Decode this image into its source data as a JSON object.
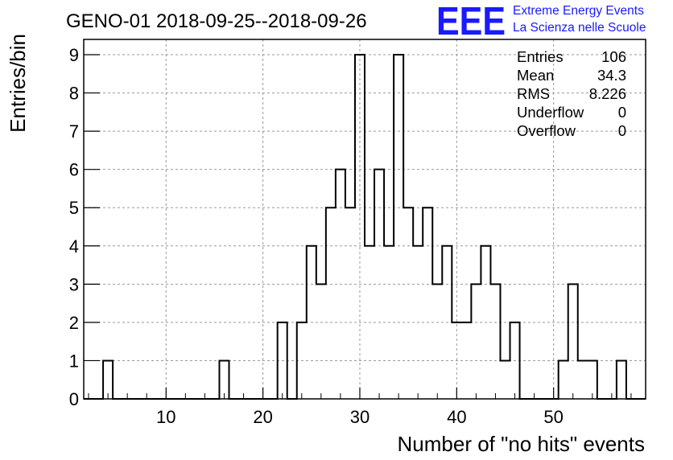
{
  "title": "GENO-01 2018-09-25--2018-09-26",
  "logo": {
    "text": "EEE",
    "line1": "Extreme Energy Events",
    "line2": "La Scienza nelle Scuole",
    "color": "#1a1aff"
  },
  "stats": [
    {
      "label": "Entries",
      "value": "106"
    },
    {
      "label": "Mean",
      "value": "34.3"
    },
    {
      "label": "RMS",
      "value": "8.226"
    },
    {
      "label": "Underflow",
      "value": "0"
    },
    {
      "label": "Overflow",
      "value": "0"
    }
  ],
  "chart_data": {
    "type": "bar",
    "histogram": true,
    "title": "GENO-01 2018-09-25--2018-09-26",
    "xlabel": "Number of \"no hits\" events",
    "ylabel": "Entries/bin",
    "xlim": [
      1.5,
      59.5
    ],
    "ylim": [
      0,
      9.4
    ],
    "bin_width": 1,
    "xticks": [
      10,
      20,
      30,
      40,
      50
    ],
    "yticks": [
      0,
      1,
      2,
      3,
      4,
      5,
      6,
      7,
      8,
      9
    ],
    "grid": true,
    "bins": [
      {
        "x": 4,
        "count": 1
      },
      {
        "x": 16,
        "count": 1
      },
      {
        "x": 22,
        "count": 2
      },
      {
        "x": 24,
        "count": 2
      },
      {
        "x": 25,
        "count": 4
      },
      {
        "x": 26,
        "count": 3
      },
      {
        "x": 27,
        "count": 5
      },
      {
        "x": 28,
        "count": 6
      },
      {
        "x": 29,
        "count": 5
      },
      {
        "x": 30,
        "count": 9
      },
      {
        "x": 31,
        "count": 4
      },
      {
        "x": 32,
        "count": 6
      },
      {
        "x": 33,
        "count": 4
      },
      {
        "x": 34,
        "count": 9
      },
      {
        "x": 35,
        "count": 5
      },
      {
        "x": 36,
        "count": 4
      },
      {
        "x": 37,
        "count": 5
      },
      {
        "x": 38,
        "count": 3
      },
      {
        "x": 39,
        "count": 4
      },
      {
        "x": 40,
        "count": 2
      },
      {
        "x": 41,
        "count": 2
      },
      {
        "x": 42,
        "count": 3
      },
      {
        "x": 43,
        "count": 4
      },
      {
        "x": 44,
        "count": 3
      },
      {
        "x": 45,
        "count": 1
      },
      {
        "x": 46,
        "count": 2
      },
      {
        "x": 51,
        "count": 1
      },
      {
        "x": 52,
        "count": 3
      },
      {
        "x": 53,
        "count": 1
      },
      {
        "x": 54,
        "count": 1
      },
      {
        "x": 57,
        "count": 1
      }
    ]
  }
}
